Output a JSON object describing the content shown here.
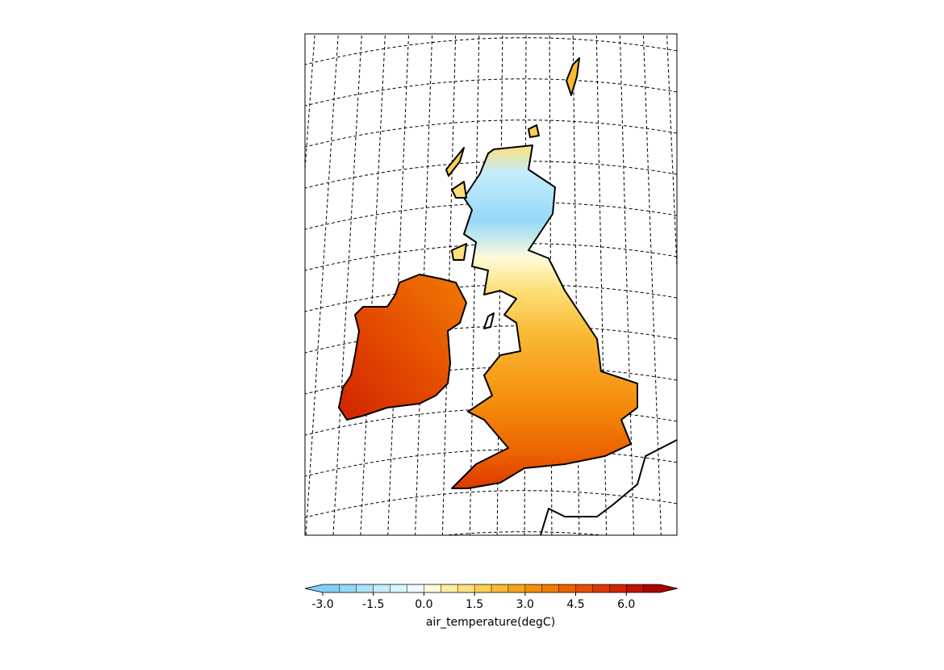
{
  "chart_data": {
    "type": "map",
    "colorbar": {
      "label": "air_temperature(degC)",
      "lim": [
        -3,
        7
      ],
      "ticks": [
        {
          "value": -3,
          "label": "-3.0"
        },
        {
          "value": -1.5,
          "label": "-1.5"
        },
        {
          "value": 0,
          "label": "0.0"
        },
        {
          "value": 1.5,
          "label": "1.5"
        },
        {
          "value": 3,
          "label": "3.0"
        },
        {
          "value": 4.5,
          "label": "4.5"
        },
        {
          "value": 6,
          "label": "6.0"
        }
      ],
      "colors": [
        "#80cff7",
        "#96d8f9",
        "#aee2fb",
        "#c4ecfc",
        "#d8f4fd",
        "#ecfbfe",
        "#fffbd9",
        "#feec9f",
        "#fde07a",
        "#fbcd53",
        "#f9b934",
        "#f7a41d",
        "#f48e0c",
        "#f17a03",
        "#ec6200",
        "#e54d00",
        "#dd3800",
        "#d02400",
        "#bf1200",
        "#a80600"
      ],
      "extend": "both"
    }
  }
}
